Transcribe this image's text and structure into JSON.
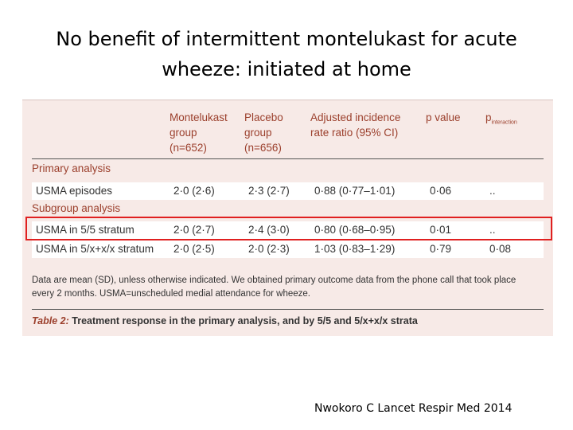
{
  "slide": {
    "title": "No benefit of intermittent montelukast for acute wheeze: initiated at home",
    "citation": "Nwokoro C Lancet Respir Med 2014"
  },
  "table": {
    "header": [
      [
        "Montelukast",
        "group",
        "(n=652)"
      ],
      [
        "Placebo",
        "group",
        "(n=656)"
      ],
      [
        "Adjusted incidence",
        "rate ratio (95% CI)"
      ],
      [
        "p value"
      ],
      {
        "text": "p",
        "subscript": "interaction"
      }
    ],
    "rows": [
      {
        "section": "Primary analysis"
      },
      {
        "cells": [
          "USMA episodes",
          "2·0 (2·6)",
          "2·3 (2·7)",
          "0·88 (0·77–1·01)",
          "0·06",
          ".."
        ]
      },
      {
        "section": "Subgroup analysis"
      },
      {
        "cells": [
          "USMA in 5/5 stratum",
          "2·0 (2·7)",
          "2·4 (3·0)",
          "0·80 (0·68–0·95)",
          "0·01",
          ".."
        ],
        "highlighted": true
      },
      {
        "cells": [
          "USMA in 5/x+x/x stratum",
          "2·0 (2·5)",
          "2·0 (2·3)",
          "1·03 (0·83–1·29)",
          "0·79",
          "0·08"
        ]
      }
    ],
    "footnote": "Data are mean (SD), unless otherwise indicated. We obtained primary outcome data from the phone call that took place every 2 months. USMA=unscheduled medial attendance for wheeze.",
    "caption": {
      "label": "Table 2:",
      "text": "Treatment response in the primary analysis, and by 5/5 and 5/x+x/x strata"
    }
  }
}
